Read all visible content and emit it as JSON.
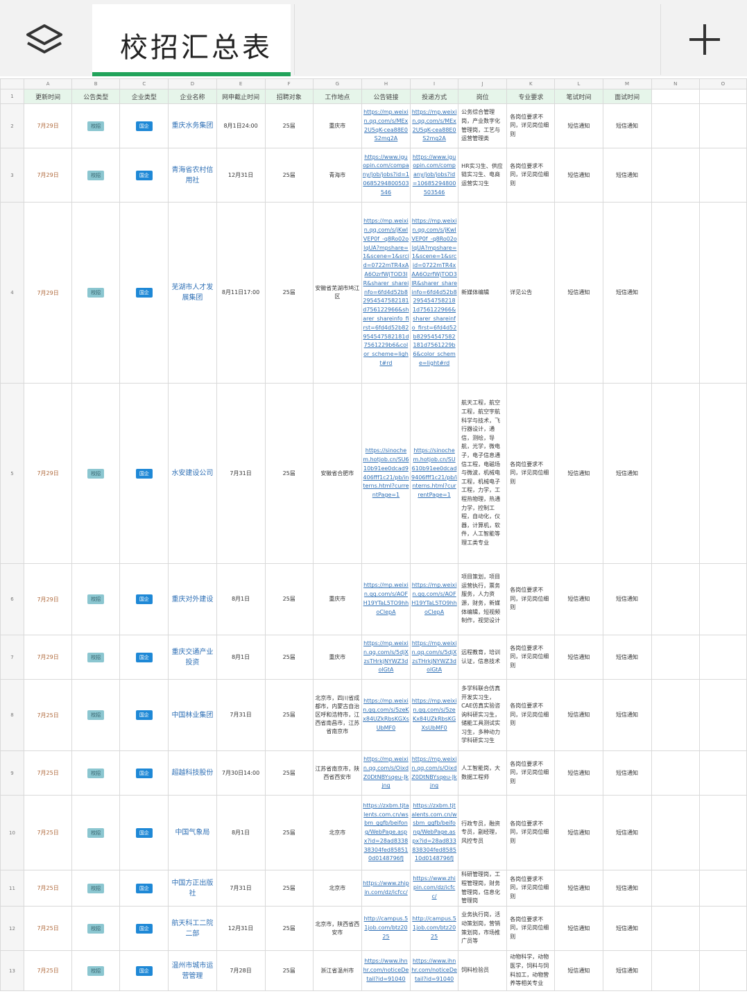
{
  "sheet": {
    "title": "校招汇总表"
  },
  "columns": [
    "A",
    "B",
    "C",
    "D",
    "E",
    "F",
    "G",
    "H",
    "I",
    "J",
    "K",
    "L",
    "M",
    "N",
    "O"
  ],
  "headers": [
    "更新时间",
    "公告类型",
    "企业类型",
    "企业名称",
    "网申截止时间",
    "招聘对象",
    "工作地点",
    "公告链接",
    "投递方式",
    "岗位",
    "专业要求",
    "笔试时间",
    "面试时间",
    "",
    ""
  ],
  "rows": [
    {
      "num": "2",
      "date": "7月29日",
      "type": "校招",
      "ent": "国企",
      "name": "重庆水务集团",
      "deadline": "8月1日24:00",
      "target": "25届",
      "loc": "重庆市",
      "link": "https://mp.weixin.qq.com/s/MEx2U5qK-cea88E0S2mq2A",
      "apply": "https://mp.weixin.qq.com/s/MEx2U5qK-cea88E0S2mq2A",
      "job": "公务综合管理岗，产业数字化管理岗，工艺与运营管理类",
      "major": "各岗位要求不同，详见岗位细则",
      "written": "短信通知",
      "interview": "短信通知"
    },
    {
      "num": "3",
      "date": "7月29日",
      "type": "校招",
      "ent": "国企",
      "name": "青海省农村信用社",
      "deadline": "12月31日",
      "target": "25届",
      "loc": "青海市",
      "link": "https://www.iguopin.com/company/job/jobs?id=10685294800503546",
      "apply": "https://www.iguopin.com/company/job/jobs?id=10685294800503546",
      "job": "HR实习生、供应链实习生、电商运营实习生",
      "major": "各岗位要求不同，详见岗位细则",
      "written": "短信通知",
      "interview": "短信通知"
    },
    {
      "num": "4",
      "date": "7月29日",
      "type": "校招",
      "ent": "国企",
      "name": "芜湖市人才发展集团",
      "deadline": "8月11日17:00",
      "target": "25届",
      "loc": "安徽省芜湖市鸠江区",
      "link": "https://mp.weixin.qq.com/s/jKwIVEP0f_-q8Ro02olqUA?mpshare=1&scene=1&srcid=0722mTR4xAA6OzrfWjTOD3IR&sharer_shareinfo=6fd4d52b82954547582181d756122966&sharer_shareinfo_first=6fd4d52b82954547582181d7561229b6&color_scheme=light#rd",
      "apply": "https://mp.weixin.qq.com/s/jKwIVEP0f_-q8Ro02olqUA?mpshare=1&scene=1&srcid=0722mTR4xAA6OzrfWjTOD3IR&sharer_shareinfo=6fd4d52b82954547582181d756122966&sharer_shareinfo_first=6fd4d52b82954547582181d7561229b6&color_scheme=light#rd",
      "job": "新媒体编辑",
      "major": "详见公告",
      "written": "短信通知",
      "interview": "短信通知"
    },
    {
      "num": "5",
      "date": "7月29日",
      "type": "校招",
      "ent": "国企",
      "name": "水安建设公司",
      "deadline": "7月31日",
      "target": "25届",
      "loc": "安徽省合肥市",
      "link": "https://sinochem.hotjob.cn/SU610b91ee0dcad9406fff1c21/pb/interns.html?currentPage=1",
      "apply": "https://sinochem.hotjob.cn/SU610b91ee0dcad9406fff1c21/pb/interns.html?currentPage=1",
      "job": "航天工程，航空工程，航空宇航科学与技术，飞行器设计，通信，测绘，导航，光学，微电子，电子信息通信工程，电磁场与微波，机械电工程，机械电子工程，力学，工程热物理，热通力学，控制工程，自动化，仪器，计算机，软件，人工智能等理工类专业",
      "major": "各岗位要求不同，详见岗位细则",
      "written": "短信通知",
      "interview": "短信通知"
    },
    {
      "num": "6",
      "date": "7月29日",
      "type": "校招",
      "ent": "国企",
      "name": "重庆对外建设",
      "deadline": "8月1日",
      "target": "25届",
      "loc": "重庆市",
      "link": "https://mp.weixin.qq.com/s/AOFH19YTaL5TO9hhoClepA",
      "apply": "https://mp.weixin.qq.com/s/AOFH19YTaL5TO9hhoClepA",
      "job": "项目策划，项目运营执行，票务服务，人力资源，财务，新媒体编辑，短视频制作，视觉设计",
      "major": "各岗位要求不同，详见岗位细则",
      "written": "短信通知",
      "interview": "短信通知"
    },
    {
      "num": "7",
      "date": "7月29日",
      "type": "校招",
      "ent": "国企",
      "name": "重庆交通产业投资",
      "deadline": "8月1日",
      "target": "25届",
      "loc": "重庆市",
      "link": "https://mp.weixin.qq.com/s/5djXzsTHrkjNYWZ3dolGtA",
      "apply": "https://mp.weixin.qq.com/s/5djXzsTHrkjNYWZ3dolGtA",
      "job": "远程教育，培训认证，信息技术",
      "major": "各岗位要求不同，详见岗位细则",
      "written": "短信通知",
      "interview": "短信通知"
    },
    {
      "num": "8",
      "date": "7月25日",
      "type": "校招",
      "ent": "国企",
      "name": "中国林业集团",
      "deadline": "7月31日",
      "target": "25届",
      "loc": "北京市，四川省成都市，内蒙古自治区呼和浩特市，江西省南昌市，江苏省南京市",
      "link": "https://mp.weixin.qq.com/s/5zeKx84UZkRbsKGXsUbMF0",
      "apply": "https://mp.weixin.qq.com/s/5zeKx84UZkRbsKGXsUbMF0",
      "job": "多学科联合仿真开发实习生，CAE仿真实验咨询科研实习生，储能工具测试实习生，多种动力学科研实习生",
      "major": "各岗位要求不同，详见岗位细则",
      "written": "短信通知",
      "interview": "短信通知"
    },
    {
      "num": "9",
      "date": "7月25日",
      "type": "校招",
      "ent": "国企",
      "name": "超越科技股份",
      "deadline": "7月30日14:00",
      "target": "25届",
      "loc": "江苏省南京市，陕西省西安市",
      "link": "https://mp.weixin.qq.com/s/OixdZ0DtNBYsqeu-Jkjng",
      "apply": "https://mp.weixin.qq.com/s/OixdZ0DtNBYsqeu-Jkjng",
      "job": "人工智能岗，大数据工程师",
      "major": "各岗位要求不同，详见岗位细则",
      "written": "短信通知",
      "interview": "短信通知"
    },
    {
      "num": "10",
      "date": "7月25日",
      "type": "校招",
      "ent": "国企",
      "name": "中国气象局",
      "deadline": "8月1日",
      "target": "25届",
      "loc": "北京市",
      "link": "https://zxbm.tjtalents.com.cn/wsbm_ggfb/beifong/WebPage.aspx?id=28ad833838304fed858510d0148796fJ",
      "apply": "https://zxbm.tjtalents.com.cn/wsbm_ggfb/beifong/WebPage.aspx?id=28ad833838304fed858510d0148796fJ",
      "job": "行政专员，融资专员，副经理，风控专员",
      "major": "各岗位要求不同，详见岗位细则",
      "written": "短信通知",
      "interview": "短信通知"
    },
    {
      "num": "11",
      "date": "7月25日",
      "type": "校招",
      "ent": "国企",
      "name": "中国方正出版社",
      "deadline": "7月31日",
      "target": "25届",
      "loc": "北京市",
      "link": "https://www.zhipin.com/dz/icfcc/",
      "apply": "https://www.zhipin.com/dz/icfcc/",
      "job": "科研管理岗，工程管理岗，财务管理岗，信息化管理岗",
      "major": "各岗位要求不同，详见岗位细则",
      "written": "短信通知",
      "interview": "短信通知"
    },
    {
      "num": "12",
      "date": "7月25日",
      "type": "校招",
      "ent": "国企",
      "name": "航天科工二院二部",
      "deadline": "12月31日",
      "target": "25届",
      "loc": "北京市，陕西省西安市",
      "link": "http://campus.51job.com/btz2025",
      "apply": "http://campus.51job.com/btz2025",
      "job": "业务执行岗，活动策划岗，营销策划岗，市场推广员等",
      "major": "各岗位要求不同，详见岗位细则",
      "written": "短信通知",
      "interview": "短信通知"
    },
    {
      "num": "13",
      "date": "7月25日",
      "type": "校招",
      "ent": "国企",
      "name": "温州市城市运营管理",
      "deadline": "7月28日",
      "target": "25届",
      "loc": "浙江省温州市",
      "link": "https://www.ihnhr.com/noticeDetail?id=91040",
      "apply": "https://www.ihnhr.com/noticeDetail?id=91040",
      "job": "饲料检验员",
      "major": "动物科学，动物医学，饲料与饲料加工，动物营养等相关专业",
      "written": "短信通知",
      "interview": "短信通知"
    }
  ],
  "colors": {
    "accent": "#21a35a",
    "link": "#2e6fb5",
    "header_bg": "#e6f5ea"
  }
}
